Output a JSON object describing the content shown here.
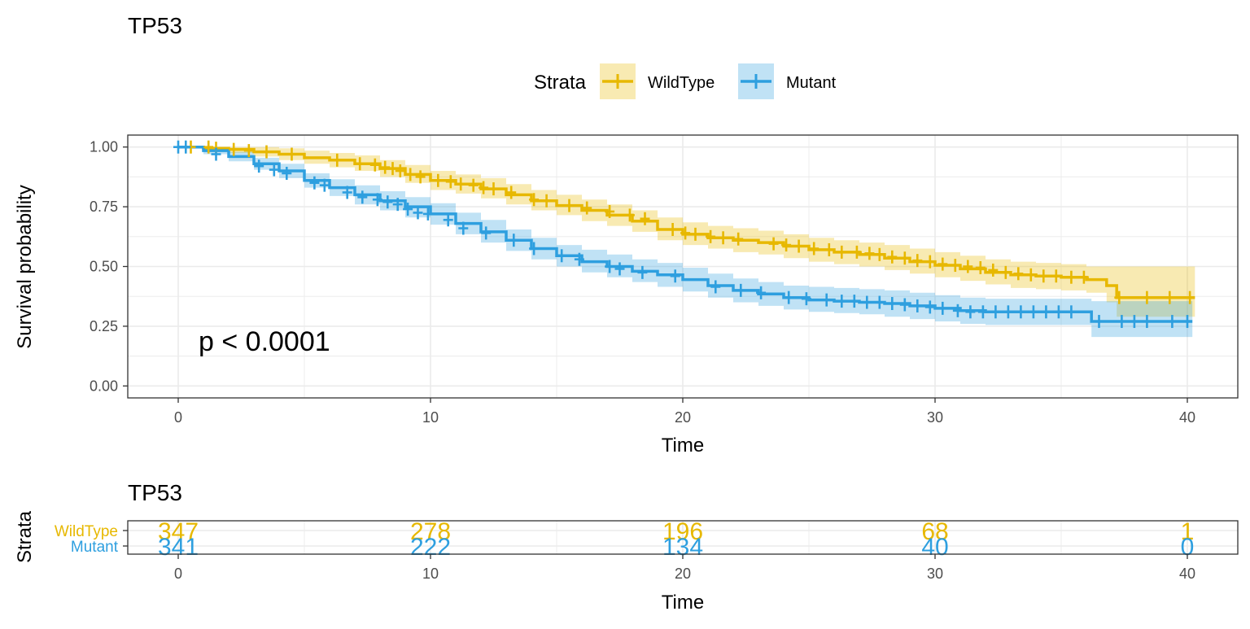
{
  "chart_data": [
    {
      "type": "line",
      "subtype": "kaplan-meier",
      "title": "TP53",
      "xlabel": "Time",
      "ylabel": "Survival probability",
      "xlim": [
        -2,
        42
      ],
      "ylim": [
        -0.05,
        1.05
      ],
      "xticks": [
        0,
        10,
        20,
        30,
        40
      ],
      "yticks": [
        0.0,
        0.25,
        0.5,
        0.75,
        1.0
      ],
      "ytick_labels": [
        "0.00",
        "0.25",
        "0.50",
        "0.75",
        "1.00"
      ],
      "grid": true,
      "legend": {
        "title": "Strata",
        "position": "top",
        "entries": [
          "WildType",
          "Mutant"
        ]
      },
      "annotation": "p < 0.0001",
      "series": [
        {
          "name": "WildType",
          "color": "#E7B800",
          "x": [
            0,
            1,
            2,
            3,
            4,
            5,
            6,
            7,
            8,
            9,
            10,
            11,
            12,
            13,
            14,
            15,
            16,
            17,
            18,
            19,
            20,
            21,
            22,
            23,
            24,
            25,
            26,
            27,
            28,
            29,
            30,
            31,
            32,
            33,
            34,
            35,
            36,
            36.8,
            37.2,
            40.3
          ],
          "y": [
            1.0,
            0.995,
            0.99,
            0.98,
            0.97,
            0.955,
            0.945,
            0.93,
            0.91,
            0.885,
            0.86,
            0.845,
            0.825,
            0.8,
            0.775,
            0.755,
            0.735,
            0.715,
            0.69,
            0.655,
            0.635,
            0.62,
            0.61,
            0.6,
            0.585,
            0.57,
            0.56,
            0.55,
            0.535,
            0.52,
            0.505,
            0.49,
            0.475,
            0.465,
            0.46,
            0.455,
            0.445,
            0.42,
            0.37,
            0.37
          ],
          "lower": [
            1.0,
            0.985,
            0.975,
            0.96,
            0.945,
            0.93,
            0.915,
            0.9,
            0.875,
            0.85,
            0.82,
            0.805,
            0.785,
            0.76,
            0.735,
            0.715,
            0.69,
            0.67,
            0.645,
            0.61,
            0.59,
            0.575,
            0.56,
            0.55,
            0.535,
            0.52,
            0.51,
            0.5,
            0.485,
            0.47,
            0.455,
            0.44,
            0.425,
            0.41,
            0.405,
            0.4,
            0.39,
            0.35,
            0.29,
            0.29
          ],
          "upper": [
            1.0,
            1.0,
            1.0,
            1.0,
            0.995,
            0.985,
            0.975,
            0.965,
            0.945,
            0.925,
            0.9,
            0.885,
            0.87,
            0.845,
            0.82,
            0.8,
            0.78,
            0.76,
            0.735,
            0.705,
            0.685,
            0.67,
            0.66,
            0.65,
            0.635,
            0.62,
            0.61,
            0.6,
            0.59,
            0.575,
            0.56,
            0.545,
            0.53,
            0.52,
            0.515,
            0.51,
            0.5,
            0.5,
            0.5,
            0.5
          ],
          "censor_x": [
            0.5,
            1.2,
            1.5,
            2.2,
            2.8,
            3.5,
            4.5,
            6.3,
            7.2,
            7.8,
            8.2,
            8.5,
            8.8,
            9.2,
            9.6,
            10.3,
            10.8,
            11.2,
            11.7,
            12.1,
            12.5,
            13.2,
            14.1,
            14.6,
            15.5,
            16.2,
            17.1,
            17.9,
            18.5,
            19.6,
            20.1,
            20.5,
            21.1,
            21.6,
            22.2,
            23.6,
            24.1,
            24.6,
            25.2,
            25.8,
            26.3,
            26.9,
            27.4,
            27.8,
            28.3,
            28.8,
            29.3,
            29.8,
            30.3,
            30.8,
            31.3,
            31.8,
            32.3,
            32.8,
            33.3,
            33.8,
            34.3,
            34.8,
            35.4,
            35.9,
            37.3,
            38.4,
            39.3,
            40.1
          ],
          "censor_y": [
            1.0,
            1.0,
            0.995,
            0.99,
            0.985,
            0.98,
            0.97,
            0.945,
            0.93,
            0.925,
            0.915,
            0.91,
            0.9,
            0.885,
            0.875,
            0.86,
            0.855,
            0.845,
            0.84,
            0.83,
            0.825,
            0.81,
            0.78,
            0.775,
            0.755,
            0.745,
            0.73,
            0.715,
            0.7,
            0.655,
            0.64,
            0.635,
            0.625,
            0.62,
            0.615,
            0.595,
            0.59,
            0.585,
            0.575,
            0.57,
            0.56,
            0.56,
            0.555,
            0.55,
            0.54,
            0.535,
            0.525,
            0.52,
            0.51,
            0.505,
            0.5,
            0.495,
            0.485,
            0.475,
            0.47,
            0.465,
            0.46,
            0.46,
            0.455,
            0.455,
            0.37,
            0.37,
            0.37,
            0.37
          ]
        },
        {
          "name": "Mutant",
          "color": "#2E9FDF",
          "x": [
            0,
            1,
            2,
            3,
            4,
            5,
            6,
            7,
            8,
            9,
            10,
            11,
            12,
            13,
            14,
            15,
            16,
            17,
            18,
            19,
            20,
            21,
            22,
            23,
            24,
            25,
            26,
            27,
            28,
            29,
            30,
            31,
            32,
            33,
            34,
            35,
            35.9,
            36.2,
            40.2
          ],
          "y": [
            1.0,
            0.985,
            0.96,
            0.93,
            0.9,
            0.86,
            0.83,
            0.8,
            0.775,
            0.75,
            0.72,
            0.68,
            0.645,
            0.61,
            0.575,
            0.545,
            0.52,
            0.5,
            0.48,
            0.465,
            0.445,
            0.42,
            0.4,
            0.385,
            0.37,
            0.36,
            0.355,
            0.35,
            0.345,
            0.335,
            0.325,
            0.315,
            0.31,
            0.31,
            0.31,
            0.31,
            0.31,
            0.27,
            0.27
          ],
          "lower": [
            1.0,
            0.97,
            0.94,
            0.905,
            0.87,
            0.83,
            0.795,
            0.76,
            0.735,
            0.705,
            0.675,
            0.635,
            0.6,
            0.565,
            0.53,
            0.5,
            0.475,
            0.455,
            0.435,
            0.415,
            0.395,
            0.37,
            0.35,
            0.335,
            0.32,
            0.31,
            0.305,
            0.3,
            0.29,
            0.28,
            0.27,
            0.26,
            0.255,
            0.255,
            0.255,
            0.255,
            0.255,
            0.205,
            0.205
          ],
          "upper": [
            1.0,
            0.995,
            0.98,
            0.955,
            0.93,
            0.89,
            0.865,
            0.84,
            0.815,
            0.79,
            0.765,
            0.725,
            0.695,
            0.655,
            0.62,
            0.59,
            0.57,
            0.55,
            0.53,
            0.515,
            0.495,
            0.47,
            0.45,
            0.435,
            0.42,
            0.415,
            0.41,
            0.405,
            0.4,
            0.39,
            0.38,
            0.37,
            0.365,
            0.365,
            0.365,
            0.365,
            0.365,
            0.355,
            0.355
          ],
          "censor_x": [
            0,
            0.3,
            1.5,
            3.2,
            3.8,
            4.3,
            5.4,
            5.8,
            6.7,
            7.3,
            7.9,
            8.3,
            8.7,
            9.1,
            9.5,
            9.9,
            10.7,
            11.3,
            12.2,
            13.3,
            14.1,
            15.2,
            15.9,
            17.1,
            17.5,
            18.4,
            19.7,
            21.3,
            22.3,
            23.1,
            24.2,
            24.9,
            25.7,
            26.3,
            26.8,
            27.3,
            27.8,
            28.3,
            28.8,
            29.3,
            29.8,
            30.3,
            30.9,
            31.4,
            31.9,
            32.4,
            32.9,
            33.4,
            33.9,
            34.4,
            34.9,
            35.4,
            36.5,
            37.4,
            37.9,
            38.4,
            39.4,
            40.0
          ],
          "censor_y": [
            1.0,
            1.0,
            0.97,
            0.92,
            0.905,
            0.89,
            0.85,
            0.84,
            0.81,
            0.79,
            0.78,
            0.77,
            0.76,
            0.74,
            0.725,
            0.72,
            0.695,
            0.66,
            0.64,
            0.61,
            0.575,
            0.545,
            0.53,
            0.5,
            0.49,
            0.475,
            0.46,
            0.415,
            0.4,
            0.39,
            0.37,
            0.365,
            0.36,
            0.355,
            0.355,
            0.35,
            0.35,
            0.345,
            0.34,
            0.335,
            0.33,
            0.325,
            0.315,
            0.31,
            0.31,
            0.31,
            0.31,
            0.31,
            0.31,
            0.31,
            0.31,
            0.31,
            0.27,
            0.27,
            0.27,
            0.27,
            0.27,
            0.27
          ]
        }
      ]
    },
    {
      "type": "table",
      "title": "TP53",
      "xlabel": "Time",
      "ylabel": "Strata",
      "xlim": [
        -2,
        42
      ],
      "xticks": [
        0,
        10,
        20,
        30,
        40
      ],
      "rows": [
        "WildType",
        "Mutant"
      ],
      "row_colors": [
        "#E7B800",
        "#2E9FDF"
      ],
      "columns": [
        0,
        10,
        20,
        30,
        40
      ],
      "values": [
        [
          347,
          278,
          196,
          68,
          1
        ],
        [
          341,
          222,
          134,
          40,
          0
        ]
      ]
    }
  ]
}
